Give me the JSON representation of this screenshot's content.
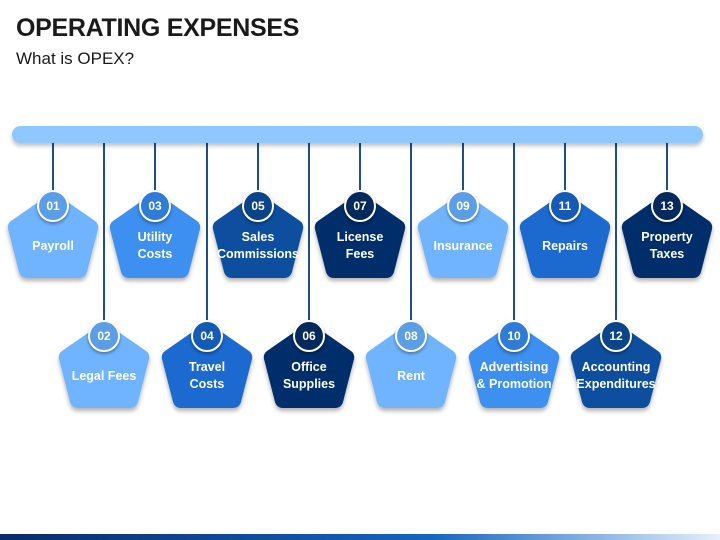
{
  "header": {
    "title": "OPERATING EXPENSES",
    "subtitle": "What is OPEX?"
  },
  "items": [
    {
      "num": "01",
      "label": "Payroll",
      "color": "#6fb4ff",
      "badge": "#5c9ee6",
      "row": "top"
    },
    {
      "num": "02",
      "label": "Legal Fees",
      "color": "#6fb4ff",
      "badge": "#5c9ee6",
      "row": "bottom"
    },
    {
      "num": "03",
      "label": "Utility\nCosts",
      "color": "#3d8ff0",
      "badge": "#2f7bd6",
      "row": "top"
    },
    {
      "num": "04",
      "label": "Travel\nCosts",
      "color": "#1a6ad0",
      "badge": "#155bb5",
      "row": "bottom"
    },
    {
      "num": "05",
      "label": "Sales\nCommissions",
      "color": "#0d4f9e",
      "badge": "#0b4488",
      "row": "top"
    },
    {
      "num": "06",
      "label": "Office\nSupplies",
      "color": "#062f6b",
      "badge": "#06295c",
      "row": "bottom"
    },
    {
      "num": "07",
      "label": "License\nFees",
      "color": "#062f6b",
      "badge": "#06295c",
      "row": "top"
    },
    {
      "num": "08",
      "label": "Rent",
      "color": "#6fb4ff",
      "badge": "#5c9ee6",
      "row": "bottom"
    },
    {
      "num": "09",
      "label": "Insurance",
      "color": "#6fb4ff",
      "badge": "#5c9ee6",
      "row": "top"
    },
    {
      "num": "10",
      "label": "Advertising\n& Promotion",
      "color": "#3d8ff0",
      "badge": "#2f7bd6",
      "row": "bottom"
    },
    {
      "num": "11",
      "label": "Repairs",
      "color": "#1a6ad0",
      "badge": "#155bb5",
      "row": "top"
    },
    {
      "num": "12",
      "label": "Accounting\nExpenditures",
      "color": "#0d4f9e",
      "badge": "#0b4488",
      "row": "bottom"
    },
    {
      "num": "13",
      "label": "Property\nTaxes",
      "color": "#062f6b",
      "badge": "#06295c",
      "row": "top"
    }
  ]
}
